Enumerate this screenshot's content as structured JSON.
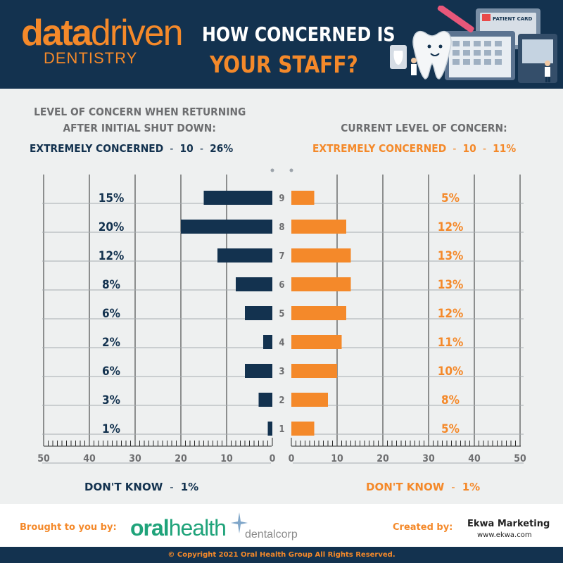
{
  "header": {
    "logo_data": "data",
    "logo_driven": "driven",
    "logo_sub": "DENTISTRY",
    "title_line1": "HOW CONCERNED IS",
    "title_line2": "YOUR STAFF?",
    "illustration_label": "PATIENT CARD"
  },
  "left_panel": {
    "heading_line1": "LEVEL OF CONCERN WHEN RETURNING",
    "heading_line2": "AFTER INITIAL SHUT DOWN:",
    "extreme_label": "EXTREMELY CONCERNED",
    "extreme_level": "10",
    "extreme_pct": "26%",
    "dont_know_label": "DON'T KNOW",
    "dont_know_pct": "1%"
  },
  "right_panel": {
    "heading": "CURRENT LEVEL OF CONCERN:",
    "extreme_label": "EXTREMELY CONCERNED",
    "extreme_level": "10",
    "extreme_pct": "11%",
    "dont_know_label": "DON'T KNOW",
    "dont_know_pct": "1%"
  },
  "chart_data": {
    "type": "bar",
    "orientation": "horizontal-mirrored",
    "categories": [
      "9",
      "8",
      "7",
      "6",
      "5",
      "4",
      "3",
      "2",
      "1"
    ],
    "series": [
      {
        "values": [
          15,
          20,
          12,
          8,
          6,
          2,
          6,
          3,
          1
        ],
        "labels": [
          "15%",
          "20%",
          "12%",
          "8%",
          "6%",
          "2%",
          "6%",
          "3%",
          "1%"
        ],
        "color": "#13324f"
      },
      {
        "values": [
          5,
          12,
          13,
          13,
          12,
          11,
          10,
          8,
          5
        ],
        "labels": [
          "5%",
          "12%",
          "13%",
          "13%",
          "12%",
          "11%",
          "10%",
          "8%",
          "5%"
        ],
        "color": "#f4892a"
      }
    ],
    "left_ticks": [
      "50",
      "40",
      "30",
      "20",
      "10",
      "0"
    ],
    "right_ticks": [
      "0",
      "10",
      "20",
      "30",
      "40",
      "50"
    ],
    "xlim": [
      0,
      50
    ],
    "grid": true
  },
  "footer": {
    "brought_label": "Brought to you by:",
    "sponsor1_part1": "oral",
    "sponsor1_part2": "health",
    "sponsor2": "dentalcorp",
    "created_label": "Created by:",
    "creator": "Ekwa Marketing",
    "creator_url": "www.ekwa.com",
    "copyright": "© Copyright 2021 Oral Health Group All Rights Reserved."
  },
  "colors": {
    "navy": "#13324f",
    "orange": "#f4892a",
    "gray": "#6d6e70",
    "green": "#1fa37a"
  }
}
